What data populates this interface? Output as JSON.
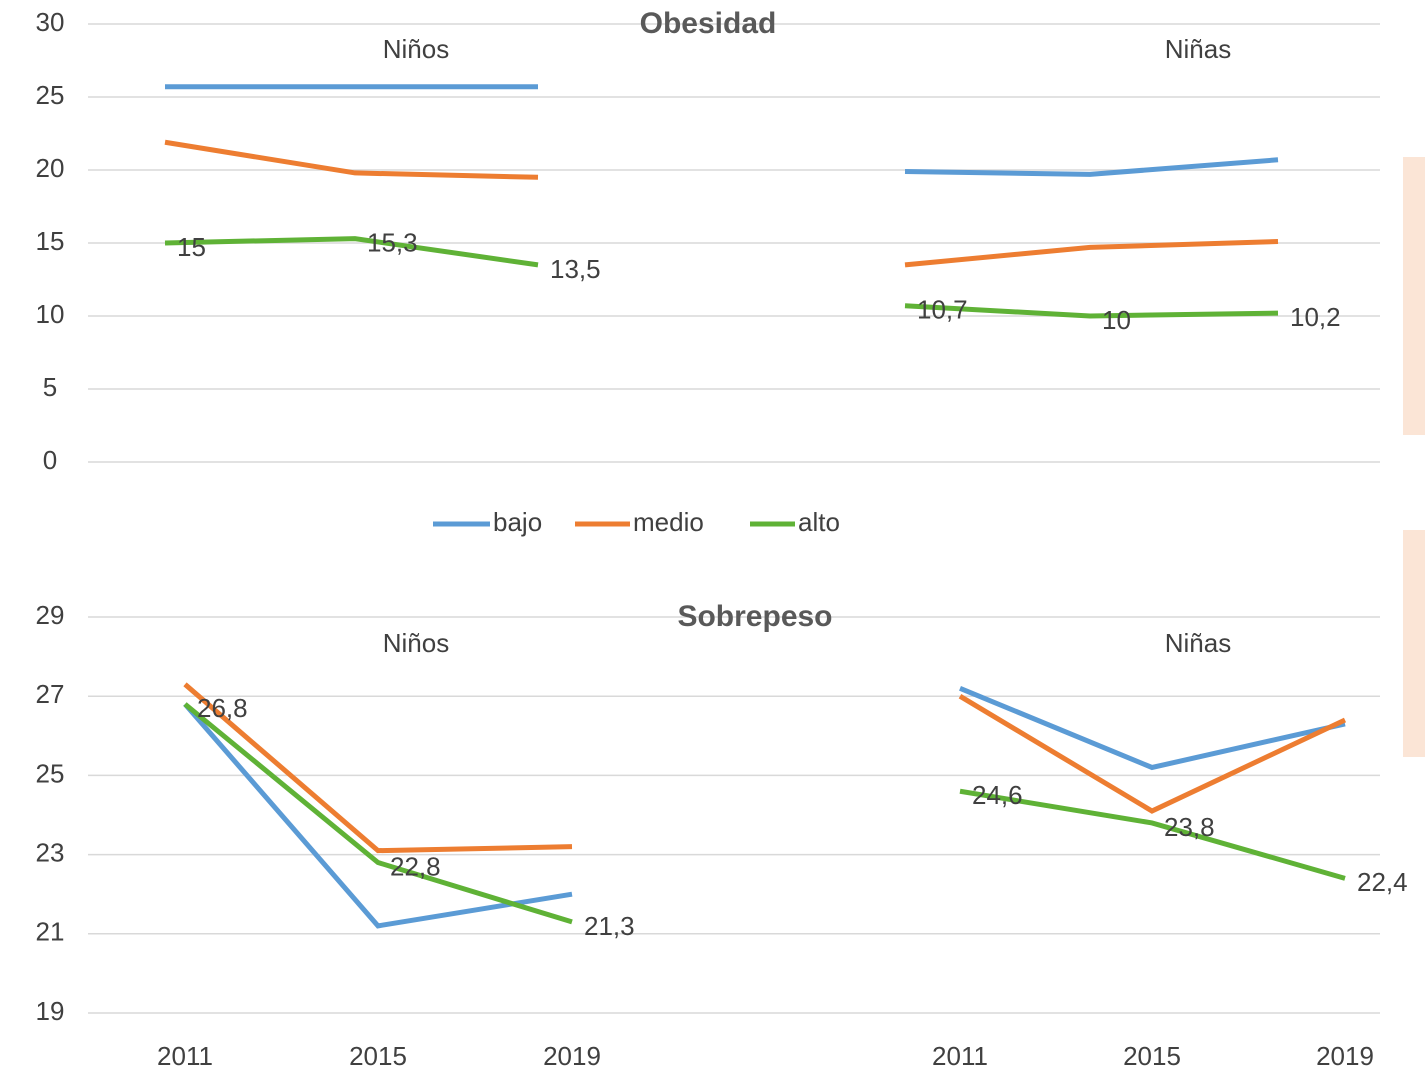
{
  "chart_data": [
    {
      "type": "line",
      "title": "Obesidad",
      "ylim": [
        0,
        30
      ],
      "yticks": [
        0,
        5,
        10,
        15,
        20,
        25,
        30
      ],
      "grid": true,
      "panels": [
        {
          "title": "Niños",
          "series": [
            {
              "name": "bajo",
              "color": "#5b9bd5",
              "values": [
                25.7,
                25.7,
                25.7
              ]
            },
            {
              "name": "medio",
              "color": "#ed7d31",
              "values": [
                21.9,
                19.8,
                19.5
              ]
            },
            {
              "name": "alto",
              "color": "#5fb236",
              "values": [
                15,
                15.3,
                13.5
              ],
              "value_labels": [
                "15",
                "15,3",
                "13,5"
              ]
            }
          ]
        },
        {
          "title": "Niñas",
          "series": [
            {
              "name": "bajo",
              "color": "#5b9bd5",
              "values": [
                19.9,
                19.7,
                20.7
              ]
            },
            {
              "name": "medio",
              "color": "#ed7d31",
              "values": [
                13.5,
                14.7,
                15.1
              ]
            },
            {
              "name": "alto",
              "color": "#5fb236",
              "values": [
                10.7,
                10,
                10.2
              ],
              "value_labels": [
                "10,7",
                "10",
                "10,2"
              ]
            }
          ]
        }
      ]
    },
    {
      "type": "line",
      "title": "Sobrepeso",
      "ylim": [
        19,
        29
      ],
      "yticks": [
        19,
        21,
        23,
        25,
        27,
        29
      ],
      "grid": true,
      "panels": [
        {
          "title": "Niños",
          "categories": [
            "2011",
            "2015",
            "2019"
          ],
          "series": [
            {
              "name": "bajo",
              "color": "#5b9bd5",
              "values": [
                26.8,
                21.2,
                22.0
              ]
            },
            {
              "name": "medio",
              "color": "#ed7d31",
              "values": [
                27.3,
                23.1,
                23.2
              ]
            },
            {
              "name": "alto",
              "color": "#5fb236",
              "values": [
                26.8,
                22.8,
                21.3
              ],
              "value_labels": [
                "26,8",
                "22,8",
                "21,3"
              ]
            }
          ]
        },
        {
          "title": "Niñas",
          "categories": [
            "2011",
            "2015",
            "2019"
          ],
          "series": [
            {
              "name": "bajo",
              "color": "#5b9bd5",
              "values": [
                27.2,
                25.2,
                26.3
              ]
            },
            {
              "name": "medio",
              "color": "#ed7d31",
              "values": [
                27.0,
                24.1,
                26.4
              ]
            },
            {
              "name": "alto",
              "color": "#5fb236",
              "values": [
                24.6,
                23.8,
                22.4
              ],
              "value_labels": [
                "24,6",
                "23,8",
                "22,4"
              ]
            }
          ]
        }
      ]
    }
  ]
}
